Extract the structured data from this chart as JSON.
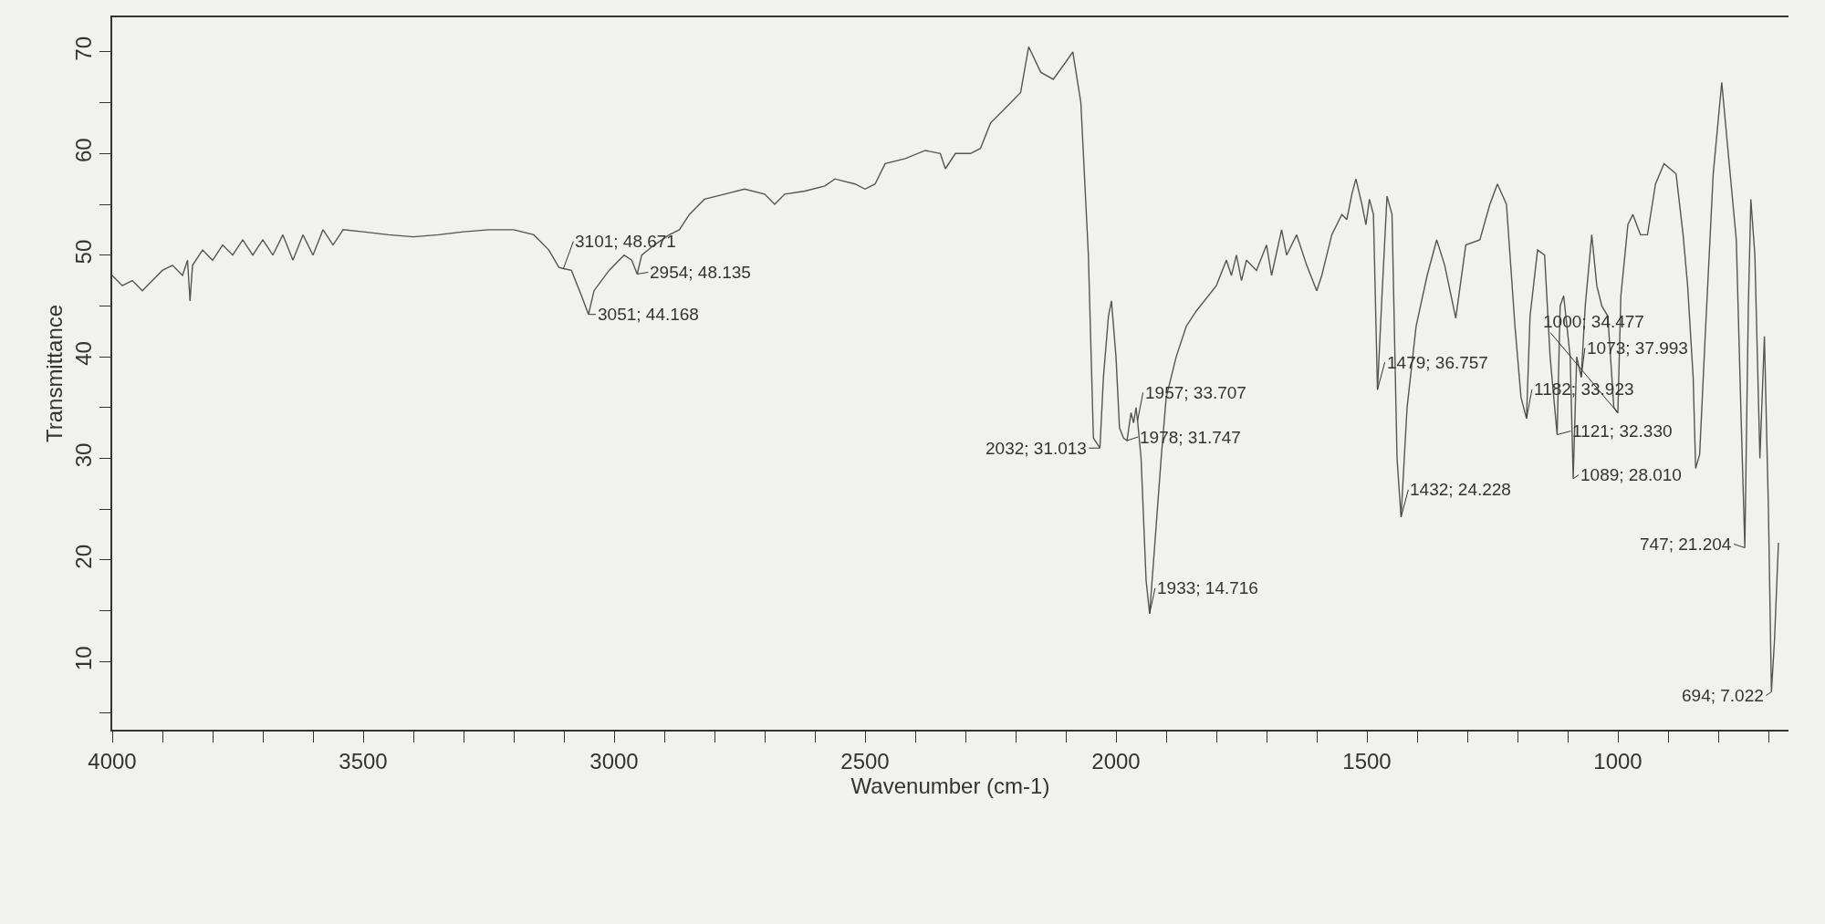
{
  "chart_data": {
    "type": "line",
    "xlabel": "Wavenumber (cm-1)",
    "ylabel": "Transmittance",
    "xlim": [
      4000,
      660
    ],
    "ylim": [
      3.3,
      73.4
    ],
    "xticks": [
      4000,
      {
        "value": 3900,
        "label": null
      },
      {
        "value": 3800,
        "label": null
      },
      {
        "value": 3700,
        "label": null
      },
      {
        "value": 3600,
        "label": null
      },
      3500,
      {
        "value": 3400,
        "label": null
      },
      {
        "value": 3300,
        "label": null
      },
      {
        "value": 3200,
        "label": null
      },
      {
        "value": 3100,
        "label": null
      },
      3000,
      {
        "value": 2900,
        "label": null
      },
      {
        "value": 2800,
        "label": null
      },
      {
        "value": 2700,
        "label": null
      },
      {
        "value": 2600,
        "label": null
      },
      2500,
      {
        "value": 2400,
        "label": null
      },
      {
        "value": 2300,
        "label": null
      },
      {
        "value": 2200,
        "label": null
      },
      {
        "value": 2100,
        "label": null
      },
      2000,
      {
        "value": 1900,
        "label": null
      },
      {
        "value": 1800,
        "label": null
      },
      {
        "value": 1700,
        "label": null
      },
      {
        "value": 1600,
        "label": null
      },
      1500,
      {
        "value": 1400,
        "label": null
      },
      {
        "value": 1300,
        "label": null
      },
      {
        "value": 1200,
        "label": null
      },
      {
        "value": 1100,
        "label": null
      },
      1000,
      {
        "value": 900,
        "label": null
      },
      {
        "value": 800,
        "label": null
      },
      {
        "value": 700,
        "label": null
      }
    ],
    "yticks": [
      {
        "value": 5,
        "label": null
      },
      10,
      {
        "value": 15,
        "label": null
      },
      20,
      {
        "value": 25,
        "label": null
      },
      30,
      {
        "value": 35,
        "label": null
      },
      40,
      {
        "value": 45,
        "label": null
      },
      50,
      {
        "value": 55,
        "label": null
      },
      60,
      {
        "value": 65,
        "label": null
      },
      70
    ],
    "grid": false,
    "marker": "none",
    "line_style": "solid",
    "x": [
      4000,
      3980,
      3960,
      3940,
      3920,
      3900,
      3880,
      3860,
      3850,
      3845,
      3840,
      3820,
      3800,
      3780,
      3760,
      3740,
      3720,
      3700,
      3680,
      3660,
      3640,
      3620,
      3600,
      3580,
      3560,
      3540,
      3500,
      3450,
      3400,
      3350,
      3300,
      3250,
      3200,
      3160,
      3130,
      3110,
      3101,
      3085,
      3065,
      3051,
      3040,
      3010,
      2980,
      2965,
      2954,
      2945,
      2920,
      2890,
      2870,
      2850,
      2820,
      2780,
      2740,
      2700,
      2680,
      2660,
      2620,
      2580,
      2560,
      2520,
      2500,
      2480,
      2460,
      2420,
      2380,
      2350,
      2340,
      2320,
      2290,
      2270,
      2250,
      2220,
      2190,
      2174,
      2150,
      2125,
      2100,
      2086,
      2070,
      2055,
      2045,
      2032,
      2025,
      2015,
      2009,
      2000,
      1993,
      1985,
      1978,
      1970,
      1965,
      1960,
      1957,
      1950,
      1940,
      1933,
      1925,
      1910,
      1900,
      1880,
      1860,
      1840,
      1800,
      1780,
      1770,
      1760,
      1750,
      1740,
      1720,
      1700,
      1690,
      1670,
      1660,
      1640,
      1620,
      1600,
      1590,
      1570,
      1550,
      1540,
      1530,
      1522,
      1510,
      1502,
      1495,
      1487,
      1479,
      1470,
      1460,
      1450,
      1440,
      1432,
      1420,
      1402,
      1380,
      1361,
      1345,
      1323,
      1303,
      1275,
      1255,
      1240,
      1222,
      1205,
      1193,
      1182,
      1175,
      1160,
      1146,
      1135,
      1121,
      1115,
      1108,
      1095,
      1089,
      1082,
      1073,
      1065,
      1052,
      1042,
      1032,
      1020,
      1008,
      1000,
      994,
      980,
      970,
      955,
      941,
      925,
      908,
      884,
      870,
      861,
      850,
      845,
      837,
      826,
      810,
      793,
      780,
      764,
      755,
      747,
      740,
      735,
      727,
      717,
      708,
      700,
      694,
      688,
      680
    ],
    "series": [
      {
        "color": "#555555",
        "values": [
          48,
          47,
          47.5,
          46.5,
          47.5,
          48.5,
          49,
          48,
          49.5,
          45.5,
          49,
          50.5,
          49.5,
          51,
          50,
          51.5,
          50,
          51.5,
          50,
          52,
          49.5,
          52,
          50,
          52.5,
          51,
          52.5,
          52.3,
          52,
          51.8,
          52,
          52.3,
          52.5,
          52.5,
          52,
          50.5,
          48.8,
          48.671,
          48.5,
          46,
          44.168,
          46.5,
          48.5,
          50,
          49.5,
          48.135,
          50,
          51,
          52,
          52.5,
          54,
          55.5,
          56,
          56.5,
          56,
          55,
          56,
          56.3,
          56.8,
          57.5,
          57,
          56.5,
          57,
          59,
          59.5,
          60.3,
          60,
          58.5,
          60,
          60,
          60.5,
          63,
          64.5,
          66,
          70.5,
          68,
          67.3,
          69,
          70,
          65,
          50,
          32,
          31.013,
          38,
          44,
          45.5,
          40,
          33,
          32,
          31.747,
          34.5,
          33.5,
          35,
          33.707,
          30,
          18,
          14.716,
          20,
          30,
          36,
          40,
          43,
          44.5,
          47,
          49.5,
          48,
          50,
          47.5,
          49.5,
          48.5,
          51,
          48,
          52.5,
          50,
          52,
          49,
          46.5,
          48,
          52,
          54,
          53.5,
          56,
          57.5,
          55,
          53,
          55.5,
          54,
          36.757,
          46,
          55.8,
          54,
          30,
          24.228,
          35,
          43,
          48,
          51.5,
          49,
          43.8,
          51,
          51.5,
          55,
          57,
          55,
          43,
          36,
          33.923,
          44,
          50.5,
          50,
          40,
          32.33,
          45,
          46,
          40,
          28.01,
          40,
          37.993,
          45,
          52,
          47,
          45,
          44,
          35,
          34.477,
          46,
          53,
          54,
          52,
          52,
          57,
          59,
          58,
          52,
          47,
          38,
          29,
          30.4,
          42,
          58,
          67,
          60,
          51.5,
          35,
          21.204,
          45,
          55.5,
          50,
          30,
          42,
          25,
          7.022,
          12,
          21.7
        ]
      }
    ],
    "annotations": [
      {
        "text": "3101; 48.671",
        "x": 3101,
        "y": 48.671
      },
      {
        "text": "3051; 44.168",
        "x": 3051,
        "y": 44.168
      },
      {
        "text": "2954; 48.135",
        "x": 2954,
        "y": 48.135
      },
      {
        "text": "2032; 31.013",
        "x": 2032,
        "y": 31.013
      },
      {
        "text": "1957; 33.707",
        "x": 1957,
        "y": 33.707
      },
      {
        "text": "1978; 31.747",
        "x": 1978,
        "y": 31.747
      },
      {
        "text": "1933; 14.716",
        "x": 1933,
        "y": 14.716
      },
      {
        "text": "1479; 36.757",
        "x": 1479,
        "y": 36.757
      },
      {
        "text": "1432; 24.228",
        "x": 1432,
        "y": 24.228
      },
      {
        "text": "1182; 33.923",
        "x": 1182,
        "y": 33.923
      },
      {
        "text": "1121; 32.330",
        "x": 1121,
        "y": 32.33
      },
      {
        "text": "1089; 28.010",
        "x": 1089,
        "y": 28.01
      },
      {
        "text": "1000; 34.477",
        "x": 1000,
        "y": 34.477
      },
      {
        "text": "1073; 37.993",
        "x": 1073,
        "y": 37.993
      },
      {
        "text": "747; 21.204",
        "x": 747,
        "y": 21.204
      },
      {
        "text": "694; 7.022",
        "x": 694,
        "y": 7.022
      }
    ]
  }
}
